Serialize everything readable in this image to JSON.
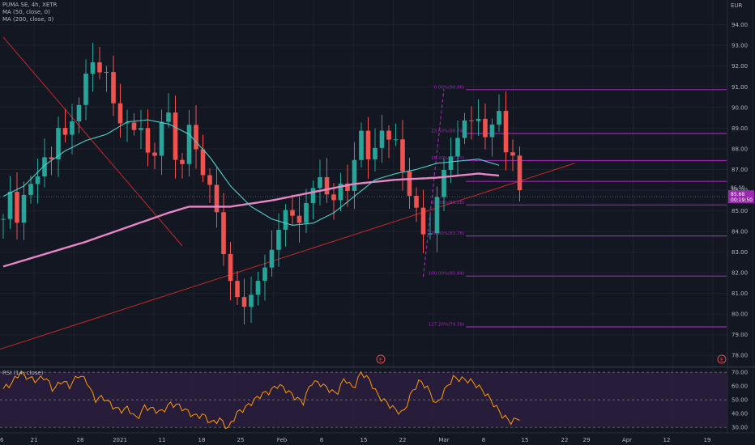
{
  "legend": {
    "symbol": "PUMA SE, 4h, XETR",
    "ma50": "MA (50, close, 0)",
    "ma200": "MA (200, close, 0)",
    "rsi": "RSI (14, close)"
  },
  "currency": "EUR",
  "colors": {
    "background": "#131722",
    "up": "#26a69a",
    "down": "#ef5350",
    "ma50": "#4dd0c8",
    "ma200": "#e785c5",
    "fib": "#9c27b0",
    "trend": "#c62828",
    "rsi": "#ff9800",
    "rsi_band": "#2a1e3e"
  },
  "chart_data": [
    {
      "type": "candlestick",
      "title": "PUMA SE, 4h, XETR",
      "ylim": [
        77.5,
        95.2
      ],
      "yticks": [
        "94.00",
        "93.00",
        "92.00",
        "91.00",
        "90.00",
        "89.00",
        "88.00",
        "87.00",
        "86.00",
        "85.00",
        "84.00",
        "83.00",
        "82.00",
        "81.00",
        "80.00",
        "79.00",
        "78.00"
      ],
      "ytick_values": [
        94,
        93,
        92,
        91,
        90,
        89,
        88,
        87,
        86,
        85,
        84,
        83,
        82,
        81,
        80,
        79,
        78
      ],
      "xticks": [
        "21",
        "28",
        "2021",
        "11",
        "18",
        "25",
        "Feb",
        "8",
        "15",
        "22",
        "Mar",
        "8",
        "15",
        "22",
        "29",
        "Apr",
        "12",
        "19",
        "26"
      ],
      "price_labels": [
        "86.00",
        "85.68",
        "00:19:50"
      ],
      "ohlc_keyframes": [
        84.6,
        85.5,
        84.2,
        86.1,
        86.0,
        86.5,
        88.4,
        87.7,
        89.5,
        88.2,
        90.6,
        89.6,
        92.5,
        91.5,
        92.4,
        90.4,
        89.4,
        90.1,
        88.7,
        89.0,
        88.1,
        87.4,
        88.7,
        89.7,
        87.8,
        87.3,
        89.2,
        88.2,
        86.9,
        85.8,
        84.2,
        82.5,
        81.1,
        80.0,
        80.5,
        82.1,
        81.5,
        82.8,
        84.0,
        84.9,
        84.4,
        84.1,
        85.4,
        85.6,
        86.7,
        86.4,
        85.7,
        86.1,
        86.0,
        87.7,
        88.6,
        86.8,
        88.4,
        89.3,
        88.0,
        88.7,
        86.8,
        85.4,
        84.4,
        83.2,
        84.8,
        86.0,
        87.3,
        88.6,
        89.5,
        89.0,
        90.2,
        88.7,
        88.5,
        89.8,
        88.0,
        87.6,
        85.7
      ],
      "ma50": [
        [
          0,
          85.7
        ],
        [
          3,
          86.2
        ],
        [
          6,
          87.2
        ],
        [
          9,
          87.9
        ],
        [
          12,
          88.4
        ],
        [
          15,
          88.7
        ],
        [
          18,
          89.3
        ],
        [
          21,
          89.4
        ],
        [
          24,
          89.2
        ],
        [
          27,
          88.7
        ],
        [
          30,
          87.6
        ],
        [
          33,
          86.2
        ],
        [
          36,
          85.2
        ],
        [
          39,
          84.6
        ],
        [
          42,
          84.3
        ],
        [
          45,
          84.4
        ],
        [
          48,
          84.9
        ],
        [
          51,
          85.7
        ],
        [
          54,
          86.5
        ],
        [
          57,
          86.8
        ],
        [
          60,
          87.0
        ],
        [
          63,
          87.3
        ],
        [
          66,
          87.4
        ],
        [
          69,
          87.5
        ],
        [
          72,
          87.2
        ]
      ],
      "ma200": [
        [
          0,
          82.3
        ],
        [
          6,
          82.9
        ],
        [
          12,
          83.5
        ],
        [
          18,
          84.2
        ],
        [
          24,
          84.9
        ],
        [
          27,
          85.2
        ],
        [
          33,
          85.2
        ],
        [
          39,
          85.5
        ],
        [
          45,
          85.9
        ],
        [
          51,
          86.3
        ],
        [
          57,
          86.5
        ],
        [
          63,
          86.6
        ],
        [
          69,
          86.8
        ],
        [
          72,
          86.7
        ]
      ],
      "trendlines": [
        {
          "from": [
            0,
            93.4
          ],
          "to": [
            26,
            83.3
          ]
        },
        {
          "from": [
            -6,
            77.7
          ],
          "to": [
            83,
            87.3
          ]
        }
      ],
      "fib_levels": [
        {
          "label": "0.00%(90.86)",
          "value": 90.86
        },
        {
          "label": "23.60%(88.74)",
          "value": 88.74
        },
        {
          "label": "38.20%(87.43)",
          "value": 87.43
        },
        {
          "label": "61.80%(85.28)",
          "value": 85.28
        },
        {
          "label": "78.60%(83.78)",
          "value": 83.78
        },
        {
          "label": "100.00%(81.84)",
          "value": 81.84
        },
        {
          "label": "127.20%(79.38)",
          "value": 79.38
        }
      ],
      "fib_extra": [
        {
          "value": 86.42
        }
      ],
      "fib_dashed": {
        "from": [
          61,
          81.8
        ],
        "to": [
          64,
          90.9
        ]
      },
      "events": [
        "E",
        "E"
      ]
    },
    {
      "type": "line",
      "title": "RSI (14, close)",
      "ylim": [
        26,
        73
      ],
      "yticks": [
        "70.00",
        "60.00",
        "50.00",
        "40.00",
        "30.00"
      ],
      "ytick_values": [
        70,
        60,
        50,
        40,
        30
      ],
      "band": [
        30,
        70
      ],
      "keyframes": [
        58,
        62,
        70,
        66,
        64,
        67,
        57,
        64,
        60,
        68,
        64,
        50,
        52,
        46,
        42,
        44,
        36,
        45,
        43,
        41,
        47,
        46,
        42,
        38,
        39,
        33,
        36,
        29,
        40,
        44,
        49,
        54,
        56,
        61,
        57,
        52,
        48,
        63,
        62,
        58,
        54,
        66,
        58,
        70,
        64,
        53,
        48,
        43,
        40,
        55,
        64,
        58,
        46,
        57,
        66,
        65,
        64,
        60,
        54,
        46,
        38,
        34,
        37
      ]
    }
  ]
}
